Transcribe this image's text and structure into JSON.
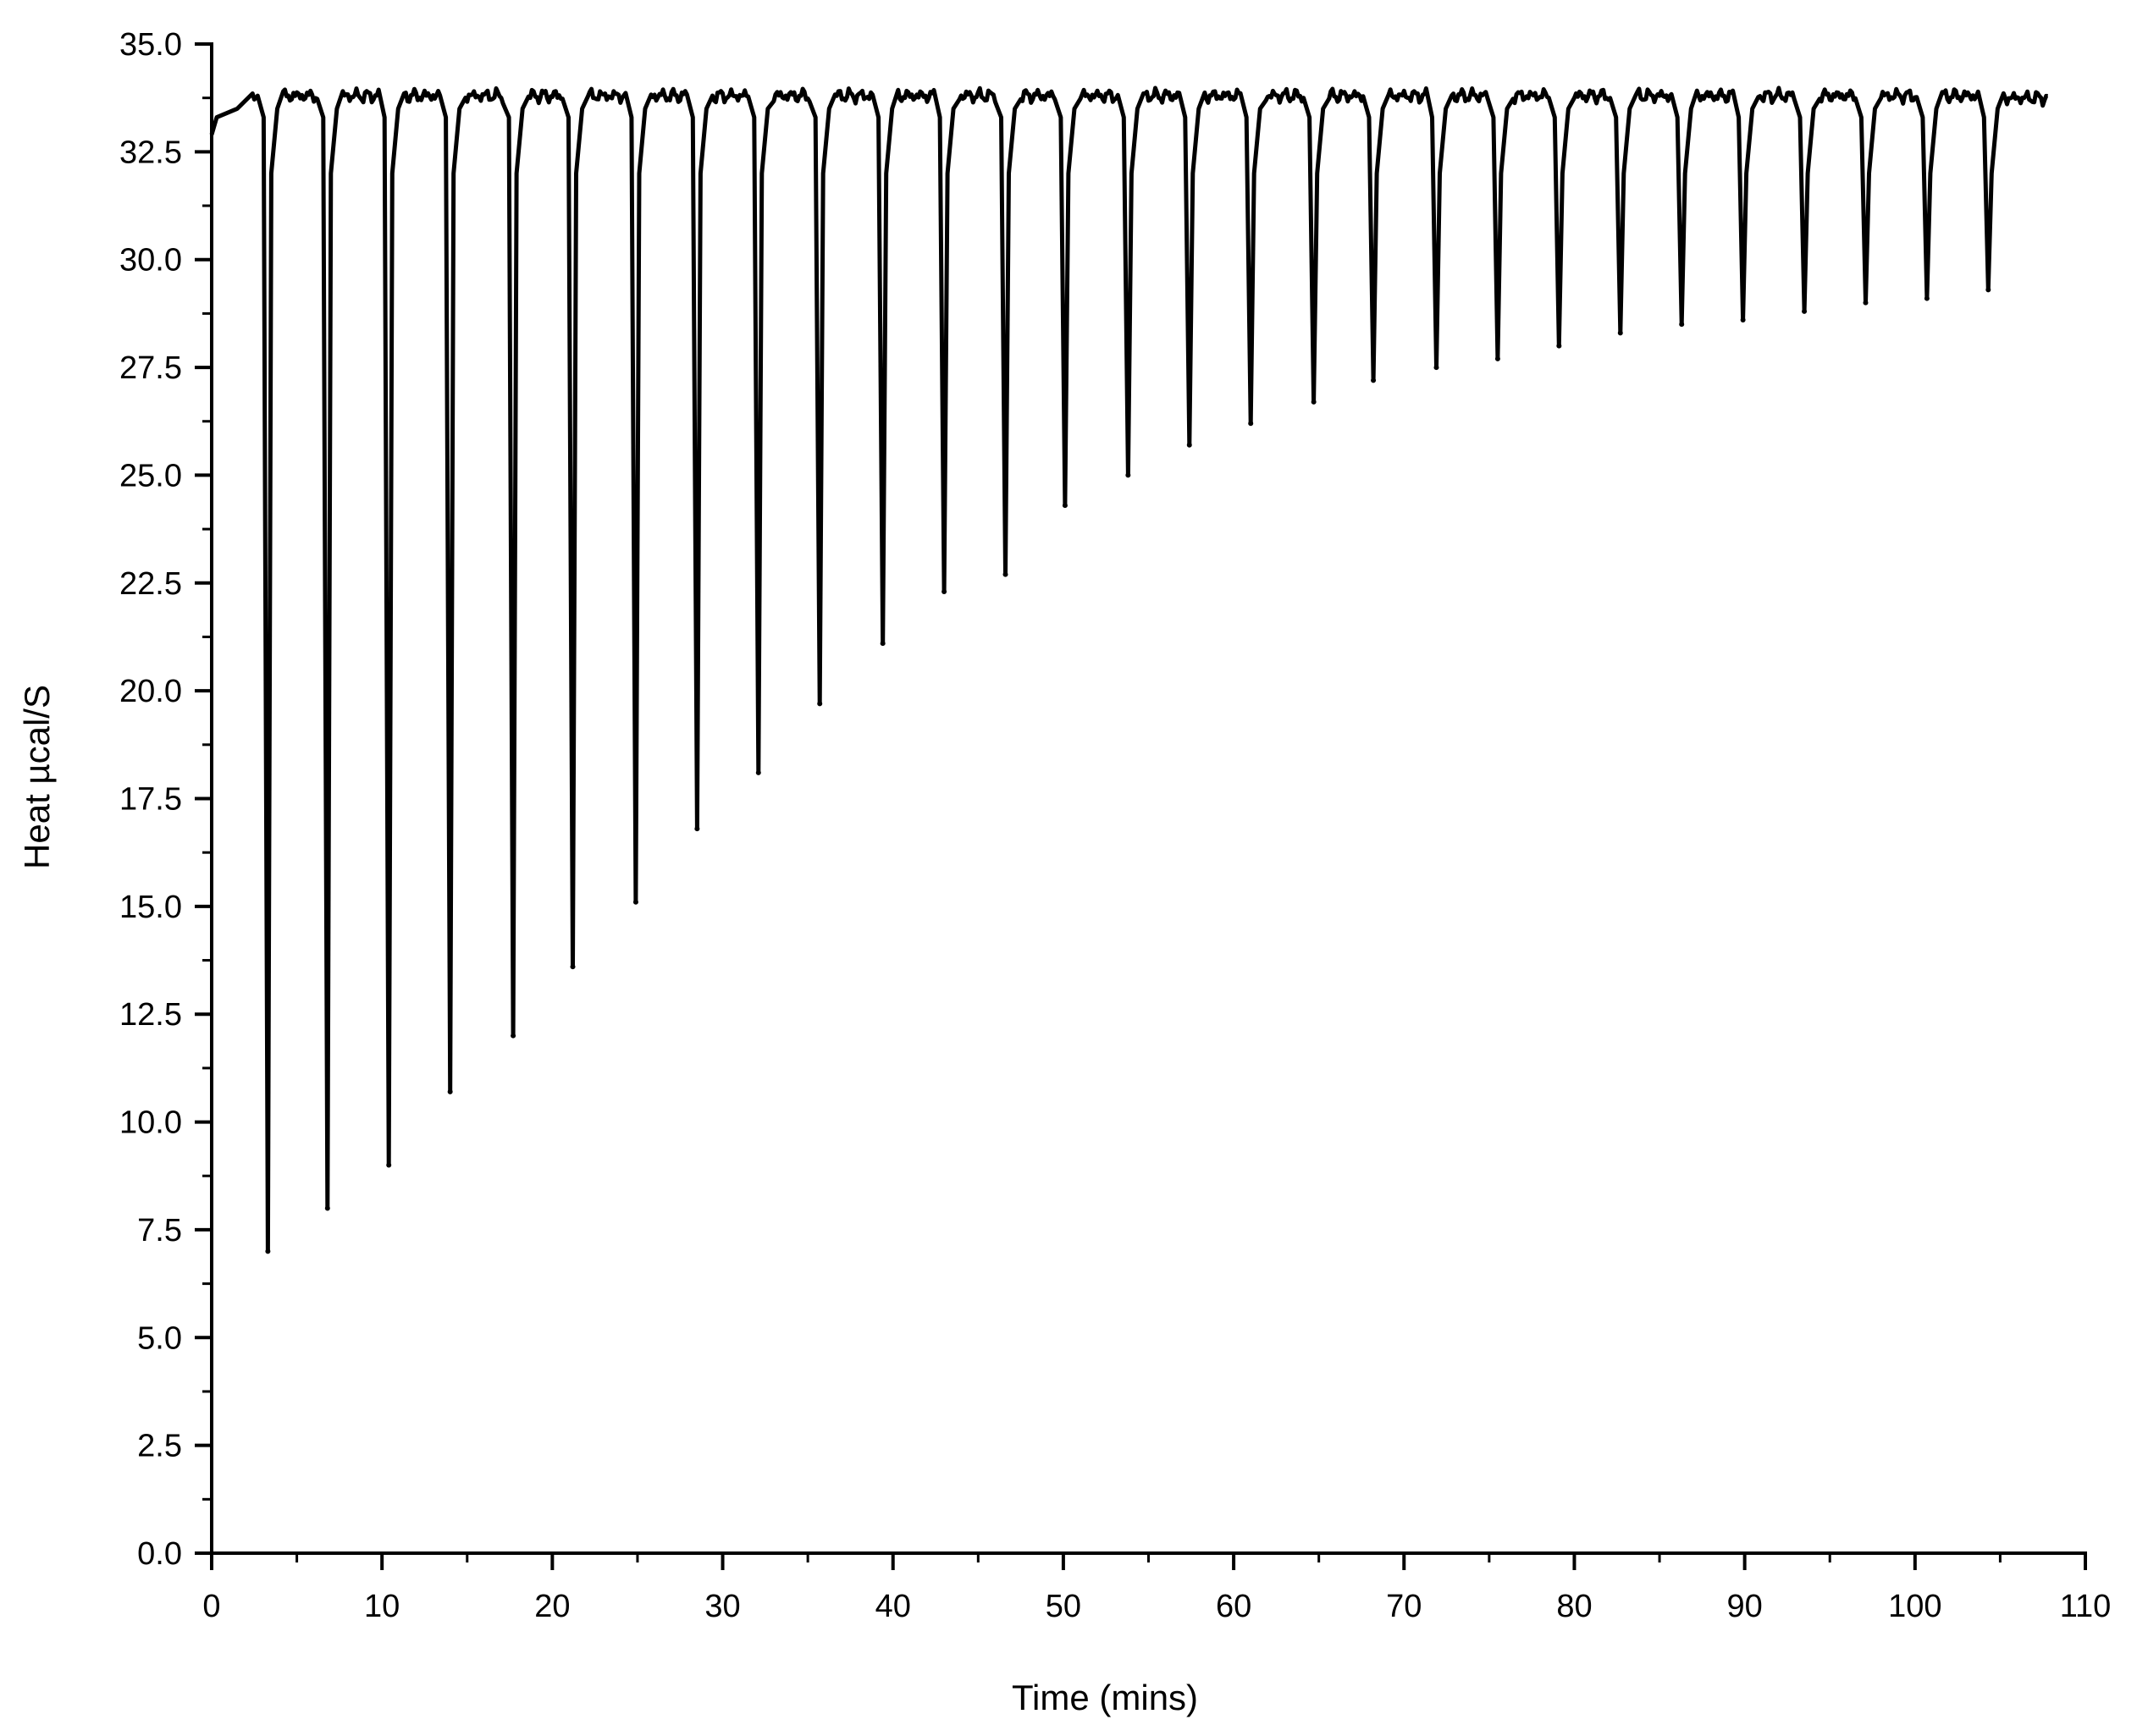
{
  "chart_data": {
    "type": "line",
    "title": "",
    "xlabel": "Time (mins)",
    "ylabel": "Heat µcal/S",
    "xlim": [
      0,
      110
    ],
    "ylim": [
      0.0,
      35.0
    ],
    "x_ticks": [
      "0",
      "10",
      "20",
      "30",
      "40",
      "50",
      "60",
      "70",
      "80",
      "90",
      "100",
      "110"
    ],
    "y_ticks": [
      "0.0",
      "2.5",
      "5.0",
      "7.5",
      "10.0",
      "12.5",
      "15.0",
      "17.5",
      "20.0",
      "22.5",
      "25.0",
      "27.5",
      "30.0",
      "32.5",
      "35.0"
    ],
    "grid": false,
    "legend": "none",
    "line_color": "#000000",
    "baseline": 33.8,
    "x_end": 107.8,
    "series": [
      {
        "peaks": [
          {
            "x": 3.3,
            "y": 7.0
          },
          {
            "x": 6.8,
            "y": 8.0
          },
          {
            "x": 10.4,
            "y": 9.0
          },
          {
            "x": 14.0,
            "y": 10.7
          },
          {
            "x": 17.7,
            "y": 12.0
          },
          {
            "x": 21.2,
            "y": 13.6
          },
          {
            "x": 24.9,
            "y": 15.1
          },
          {
            "x": 28.5,
            "y": 16.8
          },
          {
            "x": 32.1,
            "y": 18.1
          },
          {
            "x": 35.7,
            "y": 19.7
          },
          {
            "x": 39.4,
            "y": 21.1
          },
          {
            "x": 43.0,
            "y": 22.3
          },
          {
            "x": 46.6,
            "y": 22.7
          },
          {
            "x": 50.1,
            "y": 24.3
          },
          {
            "x": 53.8,
            "y": 25.0
          },
          {
            "x": 57.4,
            "y": 25.7
          },
          {
            "x": 61.0,
            "y": 26.2
          },
          {
            "x": 64.7,
            "y": 26.7
          },
          {
            "x": 68.2,
            "y": 27.2
          },
          {
            "x": 71.9,
            "y": 27.5
          },
          {
            "x": 75.5,
            "y": 27.7
          },
          {
            "x": 79.1,
            "y": 28.0
          },
          {
            "x": 82.7,
            "y": 28.3
          },
          {
            "x": 86.3,
            "y": 28.5
          },
          {
            "x": 89.9,
            "y": 28.6
          },
          {
            "x": 93.5,
            "y": 28.8
          },
          {
            "x": 97.1,
            "y": 29.0
          },
          {
            "x": 100.7,
            "y": 29.1
          },
          {
            "x": 104.3,
            "y": 29.3
          }
        ]
      }
    ]
  }
}
